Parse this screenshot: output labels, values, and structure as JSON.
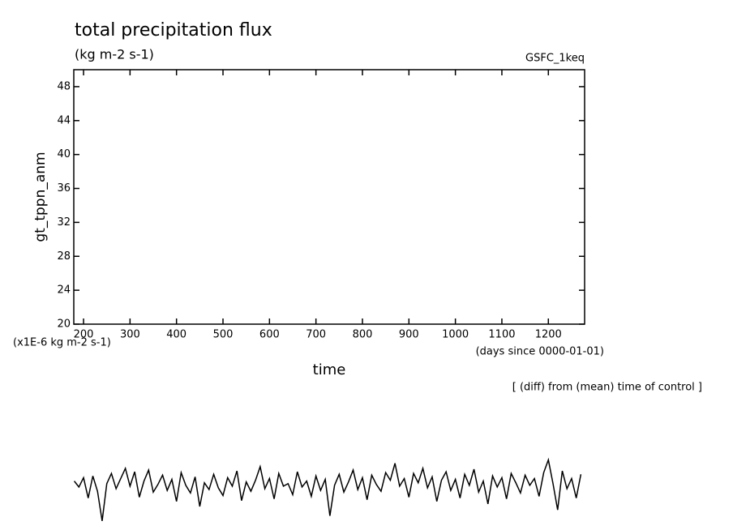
{
  "chart_data": {
    "type": "line",
    "title": "total precipitation flux",
    "subtitle": "(kg m-2 s-1)",
    "source": "GSFC_1keq",
    "y_label": "gt_tppn_anm",
    "y_unit": "(x1E-6 kg m-2 s-1)",
    "x_label": "time",
    "x_unit": "(days since 0000-01-01)",
    "note": "[ (diff) from (mean) time of control ]",
    "xlim": [
      179,
      1278
    ],
    "ylim": [
      20,
      50
    ],
    "xticks": [
      200,
      300,
      400,
      500,
      600,
      700,
      800,
      900,
      1000,
      1100,
      1200
    ],
    "yticks": [
      20,
      24,
      28,
      32,
      36,
      40,
      44,
      48
    ],
    "x": [
      180,
      190,
      200,
      210,
      220,
      230,
      240,
      250,
      260,
      270,
      280,
      290,
      300,
      310,
      320,
      330,
      340,
      350,
      360,
      370,
      380,
      390,
      400,
      410,
      420,
      430,
      440,
      450,
      460,
      470,
      480,
      490,
      500,
      510,
      520,
      530,
      540,
      550,
      560,
      570,
      580,
      590,
      600,
      610,
      620,
      630,
      640,
      650,
      660,
      670,
      680,
      690,
      700,
      710,
      720,
      730,
      740,
      750,
      760,
      770,
      780,
      790,
      800,
      810,
      820,
      830,
      840,
      850,
      860,
      870,
      880,
      890,
      900,
      910,
      920,
      930,
      940,
      950,
      960,
      970,
      980,
      990,
      1000,
      1010,
      1020,
      1030,
      1040,
      1050,
      1060,
      1070,
      1080,
      1090,
      1100,
      1110,
      1120,
      1130,
      1140,
      1150,
      1160,
      1170,
      1180,
      1190,
      1200,
      1210,
      1220,
      1230,
      1240,
      1250,
      1260,
      1270
    ],
    "series": [
      {
        "color": "#000000",
        "values": [
          1.5,
          0.8,
          1.9,
          -0.5,
          2.1,
          0.3,
          -3.2,
          1.2,
          2.4,
          0.6,
          1.8,
          3.0,
          0.9,
          2.6,
          -0.4,
          1.5,
          2.8,
          0.2,
          1.1,
          2.2,
          0.4,
          1.7,
          -0.9,
          2.5,
          1.0,
          0.1,
          2.0,
          -1.5,
          1.3,
          0.5,
          2.3,
          0.7,
          -0.2,
          1.9,
          0.9,
          2.7,
          -0.8,
          1.4,
          0.3,
          1.6,
          3.2,
          0.6,
          1.8,
          -0.6,
          2.4,
          0.9,
          1.2,
          -0.1,
          2.6,
          0.8,
          1.5,
          -0.3,
          2.1,
          0.4,
          1.7,
          -2.6,
          1.0,
          2.3,
          0.2,
          1.4,
          2.8,
          0.5,
          1.9,
          -0.7,
          2.2,
          1.1,
          0.3,
          2.5,
          1.6,
          3.6,
          0.9,
          1.8,
          -0.4,
          2.4,
          1.3,
          3.0,
          0.7,
          2.0,
          -0.9,
          1.6,
          2.6,
          0.4,
          1.7,
          -0.5,
          2.3,
          1.0,
          2.9,
          0.2,
          1.5,
          -1.2,
          2.1,
          0.8,
          1.9,
          -0.6,
          2.4,
          1.3,
          0.1,
          2.2,
          1.0,
          1.8,
          -0.3,
          2.5,
          4.0,
          1.2,
          -1.9,
          2.7,
          0.6,
          1.8,
          -0.5,
          2.3
        ]
      }
    ]
  }
}
